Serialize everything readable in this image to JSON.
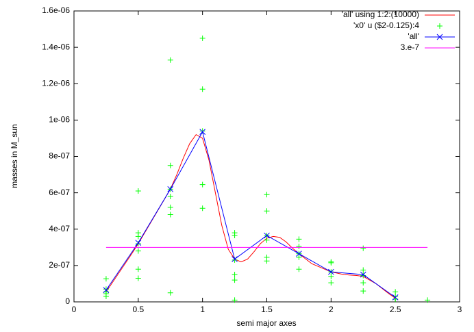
{
  "chart_data": {
    "type": "line",
    "xlabel": "semi major axes",
    "ylabel": "masses in M_sun",
    "xlim": [
      0,
      3
    ],
    "ylim": [
      0,
      1.6e-06
    ],
    "xticks": [
      0,
      0.5,
      1,
      1.5,
      2,
      2.5,
      3
    ],
    "yticks": [
      0,
      {
        "value": 2e-07,
        "label": "2e-07"
      },
      {
        "value": 4e-07,
        "label": "4e-07"
      },
      {
        "value": 6e-07,
        "label": "6e-07"
      },
      {
        "value": 8e-07,
        "label": "8e-07"
      },
      {
        "value": 1e-06,
        "label": "1e-06"
      },
      {
        "value": 1.2e-06,
        "label": "1.2e-06"
      },
      {
        "value": 1.4e-06,
        "label": "1.4e-06"
      },
      {
        "value": 1.6e-06,
        "label": "1.6e-06"
      }
    ],
    "legend": "top right",
    "series": [
      {
        "name": "'all' using 1:2:(10000)",
        "color": "#ff0000",
        "style": "lines",
        "x": [
          0.25,
          0.35,
          0.45,
          0.5,
          0.6,
          0.7,
          0.75,
          0.8,
          0.85,
          0.9,
          0.95,
          1.0,
          1.05,
          1.1,
          1.15,
          1.2,
          1.25,
          1.3,
          1.35,
          1.4,
          1.45,
          1.5,
          1.55,
          1.6,
          1.65,
          1.7,
          1.75,
          1.85,
          2.0,
          2.1,
          2.2,
          2.25,
          2.35,
          2.45,
          2.5
        ],
        "values": [
          5.5e-08,
          1.6e-07,
          2.65e-07,
          3.2e-07,
          4.4e-07,
          5.6e-07,
          6.2e-07,
          7e-07,
          7.9e-07,
          8.7e-07,
          9.2e-07,
          9e-07,
          7.8e-07,
          6e-07,
          4.2e-07,
          2.9e-07,
          2.35e-07,
          2.2e-07,
          2.35e-07,
          2.75e-07,
          3.2e-07,
          3.5e-07,
          3.6e-07,
          3.55e-07,
          3.3e-07,
          2.95e-07,
          2.65e-07,
          2.1e-07,
          1.65e-07,
          1.5e-07,
          1.45e-07,
          1.4e-07,
          1e-07,
          4.5e-08,
          2e-08
        ]
      },
      {
        "name": "'x0' u ($2-0.125):4",
        "color": "#00ff00",
        "style": "points",
        "x": [
          0.25,
          0.25,
          0.25,
          0.25,
          0.25,
          0.5,
          0.5,
          0.5,
          0.5,
          0.5,
          0.5,
          0.5,
          0.75,
          0.75,
          0.75,
          0.75,
          0.75,
          0.75,
          0.75,
          1,
          1,
          1,
          1,
          1,
          1.25,
          1.25,
          1.25,
          1.25,
          1.25,
          1.25,
          1.5,
          1.5,
          1.5,
          1.5,
          1.5,
          1.5,
          1.75,
          1.75,
          1.75,
          1.75,
          1.75,
          2,
          2,
          2,
          2,
          2,
          2.25,
          2.25,
          2.25,
          2.25,
          2.25,
          2.5,
          2.5,
          2.5,
          2.75
        ],
        "values": [
          1.27e-07,
          7e-08,
          5.5e-08,
          4.5e-08,
          3e-08,
          6.1e-07,
          3.8e-07,
          3.6e-07,
          3.2e-07,
          2.8e-07,
          1.8e-07,
          1.3e-07,
          1.33e-06,
          7.5e-07,
          6.2e-07,
          5.8e-07,
          5.2e-07,
          4.8e-07,
          5e-08,
          1.45e-06,
          1.17e-06,
          9.4e-07,
          6.45e-07,
          5.15e-07,
          3.8e-07,
          3.65e-07,
          2.3e-07,
          1.5e-07,
          1.2e-07,
          1e-08,
          5.9e-07,
          5e-07,
          3.65e-07,
          3.4e-07,
          2.45e-07,
          2.25e-07,
          3.45e-07,
          3.05e-07,
          2.65e-07,
          2.45e-07,
          1.8e-07,
          2.2e-07,
          2.15e-07,
          1.65e-07,
          1.4e-07,
          1.05e-07,
          2.95e-07,
          1.75e-07,
          1.45e-07,
          1.05e-07,
          6e-08,
          5.5e-08,
          3e-08,
          1.5e-08,
          1e-08
        ]
      },
      {
        "name": "'all'",
        "color": "#0000ff",
        "style": "linespoints",
        "x": [
          0.25,
          0.5,
          0.75,
          1,
          1.25,
          1.5,
          1.75,
          2,
          2.25,
          2.5
        ],
        "values": [
          6.5e-08,
          3.25e-07,
          6.2e-07,
          9.35e-07,
          2.35e-07,
          3.65e-07,
          2.65e-07,
          1.65e-07,
          1.5e-07,
          2.5e-08
        ]
      },
      {
        "name": "3.e-7",
        "color": "#ff00ff",
        "style": "lines",
        "x": [
          0.25,
          2.75
        ],
        "values": [
          3e-07,
          3e-07
        ]
      }
    ]
  }
}
